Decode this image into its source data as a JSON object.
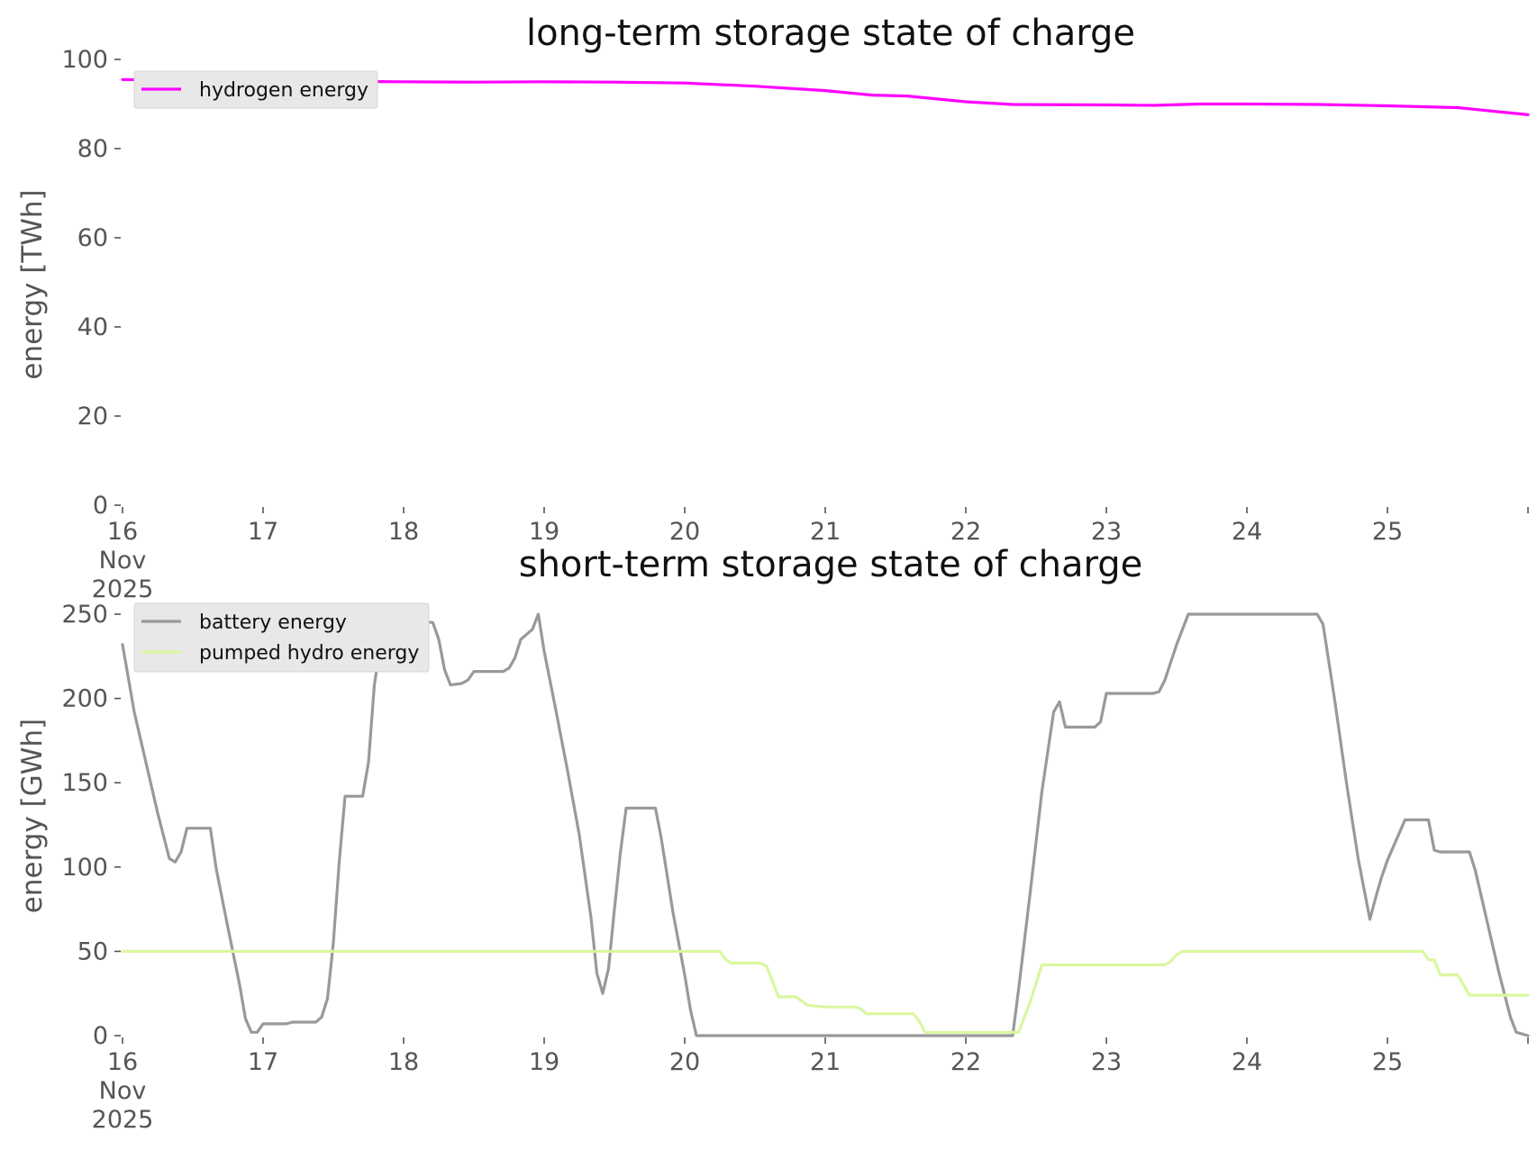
{
  "chart_data": [
    {
      "type": "line",
      "title": "long-term storage state of charge",
      "ylabel": "energy [TWh]",
      "xlabel": "",
      "ylim": [
        0,
        100
      ],
      "yticks": [
        0,
        20,
        40,
        60,
        80,
        100
      ],
      "xlim": [
        "2025-11-16",
        "2025-11-26"
      ],
      "xticks": [
        {
          "date": "2025-11-16",
          "lines": [
            "16",
            "Nov",
            "2025"
          ]
        },
        {
          "date": "2025-11-17",
          "lines": [
            "17"
          ]
        },
        {
          "date": "2025-11-18",
          "lines": [
            "18"
          ]
        },
        {
          "date": "2025-11-19",
          "lines": [
            "19"
          ]
        },
        {
          "date": "2025-11-20",
          "lines": [
            "20"
          ]
        },
        {
          "date": "2025-11-21",
          "lines": [
            "21"
          ]
        },
        {
          "date": "2025-11-22",
          "lines": [
            "22"
          ]
        },
        {
          "date": "2025-11-23",
          "lines": [
            "23"
          ]
        },
        {
          "date": "2025-11-24",
          "lines": [
            "24"
          ]
        },
        {
          "date": "2025-11-25",
          "lines": [
            "25"
          ]
        },
        {
          "date": "2025-11-26",
          "lines": [
            ""
          ]
        }
      ],
      "grid": false,
      "legend": "top-left",
      "series": [
        {
          "name": "hydrogen energy",
          "color": "#ff00ff",
          "points": [
            [
              "2025-11-16 00:00",
              95.5
            ],
            [
              "2025-11-16 12:00",
              95.3
            ],
            [
              "2025-11-17 00:00",
              95.2
            ],
            [
              "2025-11-17 12:00",
              95.1
            ],
            [
              "2025-11-18 00:00",
              95.0
            ],
            [
              "2025-11-18 12:00",
              94.9
            ],
            [
              "2025-11-19 00:00",
              95.0
            ],
            [
              "2025-11-19 12:00",
              94.9
            ],
            [
              "2025-11-20 00:00",
              94.7
            ],
            [
              "2025-11-20 12:00",
              94.0
            ],
            [
              "2025-11-21 00:00",
              93.0
            ],
            [
              "2025-11-21 08:00",
              92.0
            ],
            [
              "2025-11-21 14:00",
              91.8
            ],
            [
              "2025-11-22 00:00",
              90.5
            ],
            [
              "2025-11-22 08:00",
              89.9
            ],
            [
              "2025-11-23 00:00",
              89.8
            ],
            [
              "2025-11-23 08:00",
              89.7
            ],
            [
              "2025-11-23 16:00",
              90.0
            ],
            [
              "2025-11-24 00:00",
              90.0
            ],
            [
              "2025-11-24 12:00",
              89.9
            ],
            [
              "2025-11-25 00:00",
              89.6
            ],
            [
              "2025-11-25 12:00",
              89.2
            ],
            [
              "2025-11-26 00:00",
              87.6
            ]
          ]
        }
      ]
    },
    {
      "type": "line",
      "title": "short-term storage state of charge",
      "ylabel": "energy [GWh]",
      "xlabel": "",
      "ylim": [
        0,
        250
      ],
      "yticks": [
        0,
        50,
        100,
        150,
        200,
        250
      ],
      "xlim": [
        "2025-11-16",
        "2025-11-26"
      ],
      "xticks": [
        {
          "date": "2025-11-16",
          "lines": [
            "16",
            "Nov",
            "2025"
          ]
        },
        {
          "date": "2025-11-17",
          "lines": [
            "17"
          ]
        },
        {
          "date": "2025-11-18",
          "lines": [
            "18"
          ]
        },
        {
          "date": "2025-11-19",
          "lines": [
            "19"
          ]
        },
        {
          "date": "2025-11-20",
          "lines": [
            "20"
          ]
        },
        {
          "date": "2025-11-21",
          "lines": [
            "21"
          ]
        },
        {
          "date": "2025-11-22",
          "lines": [
            "22"
          ]
        },
        {
          "date": "2025-11-23",
          "lines": [
            "23"
          ]
        },
        {
          "date": "2025-11-24",
          "lines": [
            "24"
          ]
        },
        {
          "date": "2025-11-25",
          "lines": [
            "25"
          ]
        },
        {
          "date": "2025-11-26",
          "lines": [
            ""
          ]
        }
      ],
      "grid": false,
      "legend": "top-left",
      "series": [
        {
          "name": "battery energy",
          "color": "#999999",
          "points": [
            [
              "2025-11-16 00:00",
              232
            ],
            [
              "2025-11-16 02:00",
              192
            ],
            [
              "2025-11-16 04:00",
              162
            ],
            [
              "2025-11-16 06:00",
              132
            ],
            [
              "2025-11-16 08:00",
              105
            ],
            [
              "2025-11-16 09:00",
              103
            ],
            [
              "2025-11-16 10:00",
              109
            ],
            [
              "2025-11-16 11:00",
              123
            ],
            [
              "2025-11-16 14:00",
              123
            ],
            [
              "2025-11-16 15:00",
              123
            ],
            [
              "2025-11-16 16:00",
              99
            ],
            [
              "2025-11-16 18:00",
              64
            ],
            [
              "2025-11-16 20:00",
              30
            ],
            [
              "2025-11-16 21:00",
              10
            ],
            [
              "2025-11-16 22:00",
              2
            ],
            [
              "2025-11-16 23:00",
              2
            ],
            [
              "2025-11-17 00:00",
              7
            ],
            [
              "2025-11-17 04:00",
              7
            ],
            [
              "2025-11-17 05:00",
              8
            ],
            [
              "2025-11-17 09:00",
              8
            ],
            [
              "2025-11-17 10:00",
              11
            ],
            [
              "2025-11-17 11:00",
              22
            ],
            [
              "2025-11-17 12:00",
              55
            ],
            [
              "2025-11-17 13:00",
              103
            ],
            [
              "2025-11-17 14:00",
              142
            ],
            [
              "2025-11-17 17:00",
              142
            ],
            [
              "2025-11-17 18:00",
              162
            ],
            [
              "2025-11-17 19:00",
              208
            ],
            [
              "2025-11-17 20:00",
              231
            ],
            [
              "2025-11-17 22:00",
              249
            ],
            [
              "2025-11-18 00:00",
              249
            ],
            [
              "2025-11-18 01:00",
              247
            ],
            [
              "2025-11-18 05:00",
              245
            ],
            [
              "2025-11-18 06:00",
              235
            ],
            [
              "2025-11-18 07:00",
              217
            ],
            [
              "2025-11-18 08:00",
              208
            ],
            [
              "2025-11-18 10:00",
              209
            ],
            [
              "2025-11-18 11:00",
              211
            ],
            [
              "2025-11-18 12:00",
              216
            ],
            [
              "2025-11-18 17:00",
              216
            ],
            [
              "2025-11-18 18:00",
              218
            ],
            [
              "2025-11-18 19:00",
              224
            ],
            [
              "2025-11-18 20:00",
              235
            ],
            [
              "2025-11-18 22:00",
              241
            ],
            [
              "2025-11-18 23:00",
              250
            ],
            [
              "2025-11-19 00:00",
              228
            ],
            [
              "2025-11-19 02:00",
              193
            ],
            [
              "2025-11-19 04:00",
              157
            ],
            [
              "2025-11-19 06:00",
              119
            ],
            [
              "2025-11-19 08:00",
              70
            ],
            [
              "2025-11-19 09:00",
              37
            ],
            [
              "2025-11-19 10:00",
              25
            ],
            [
              "2025-11-19 11:00",
              40
            ],
            [
              "2025-11-19 12:00",
              75
            ],
            [
              "2025-11-19 13:00",
              108
            ],
            [
              "2025-11-19 14:00",
              135
            ],
            [
              "2025-11-19 19:00",
              135
            ],
            [
              "2025-11-19 20:00",
              117
            ],
            [
              "2025-11-19 22:00",
              73
            ],
            [
              "2025-11-20 00:00",
              36
            ],
            [
              "2025-11-20 01:00",
              15
            ],
            [
              "2025-11-20 02:00",
              0
            ],
            [
              "2025-11-22 08:00",
              0
            ],
            [
              "2025-11-22 09:00",
              27
            ],
            [
              "2025-11-22 11:00",
              85
            ],
            [
              "2025-11-22 13:00",
              145
            ],
            [
              "2025-11-22 15:00",
              192
            ],
            [
              "2025-11-22 16:00",
              198
            ],
            [
              "2025-11-22 17:00",
              183
            ],
            [
              "2025-11-22 22:00",
              183
            ],
            [
              "2025-11-22 23:00",
              186
            ],
            [
              "2025-11-23 00:00",
              203
            ],
            [
              "2025-11-23 08:00",
              203
            ],
            [
              "2025-11-23 09:00",
              204
            ],
            [
              "2025-11-23 10:00",
              211
            ],
            [
              "2025-11-23 12:00",
              232
            ],
            [
              "2025-11-23 14:00",
              250
            ],
            [
              "2025-11-24 11:00",
              250
            ],
            [
              "2025-11-24 12:00",
              250
            ],
            [
              "2025-11-24 13:00",
              244
            ],
            [
              "2025-11-24 15:00",
              199
            ],
            [
              "2025-11-24 17:00",
              150
            ],
            [
              "2025-11-24 19:00",
              105
            ],
            [
              "2025-11-24 21:00",
              69
            ],
            [
              "2025-11-24 22:00",
              82
            ],
            [
              "2025-11-24 23:00",
              94
            ],
            [
              "2025-11-25 00:00",
              104
            ],
            [
              "2025-11-25 02:00",
              120
            ],
            [
              "2025-11-25 03:00",
              128
            ],
            [
              "2025-11-25 07:00",
              128
            ],
            [
              "2025-11-25 08:00",
              110
            ],
            [
              "2025-11-25 09:00",
              109
            ],
            [
              "2025-11-25 14:00",
              109
            ],
            [
              "2025-11-25 15:00",
              98
            ],
            [
              "2025-11-25 17:00",
              68
            ],
            [
              "2025-11-25 19:00",
              38
            ],
            [
              "2025-11-25 21:00",
              11
            ],
            [
              "2025-11-25 22:00",
              2
            ],
            [
              "2025-11-26 00:00",
              0
            ]
          ]
        },
        {
          "name": "pumped hydro energy",
          "color": "#d9f7a0",
          "points": [
            [
              "2025-11-16 00:00",
              50
            ],
            [
              "2025-11-20 06:00",
              50
            ],
            [
              "2025-11-20 07:00",
              45
            ],
            [
              "2025-11-20 08:00",
              43
            ],
            [
              "2025-11-20 13:00",
              43
            ],
            [
              "2025-11-20 14:00",
              41
            ],
            [
              "2025-11-20 16:00",
              23
            ],
            [
              "2025-11-20 19:00",
              23
            ],
            [
              "2025-11-20 21:00",
              18
            ],
            [
              "2025-11-21 00:00",
              17
            ],
            [
              "2025-11-21 05:00",
              17
            ],
            [
              "2025-11-21 06:00",
              16
            ],
            [
              "2025-11-21 07:00",
              13
            ],
            [
              "2025-11-21 15:00",
              13
            ],
            [
              "2025-11-21 16:00",
              9
            ],
            [
              "2025-11-21 17:00",
              2
            ],
            [
              "2025-11-22 09:00",
              2
            ],
            [
              "2025-11-22 11:00",
              20
            ],
            [
              "2025-11-22 13:00",
              42
            ],
            [
              "2025-11-23 10:00",
              42
            ],
            [
              "2025-11-23 11:00",
              44
            ],
            [
              "2025-11-23 12:00",
              48
            ],
            [
              "2025-11-23 13:00",
              50
            ],
            [
              "2025-11-25 06:00",
              50
            ],
            [
              "2025-11-25 07:00",
              45
            ],
            [
              "2025-11-25 08:00",
              45
            ],
            [
              "2025-11-25 09:00",
              36
            ],
            [
              "2025-11-25 12:00",
              36
            ],
            [
              "2025-11-25 13:00",
              30
            ],
            [
              "2025-11-25 14:00",
              24
            ],
            [
              "2025-11-26 00:00",
              24
            ]
          ]
        }
      ]
    }
  ]
}
